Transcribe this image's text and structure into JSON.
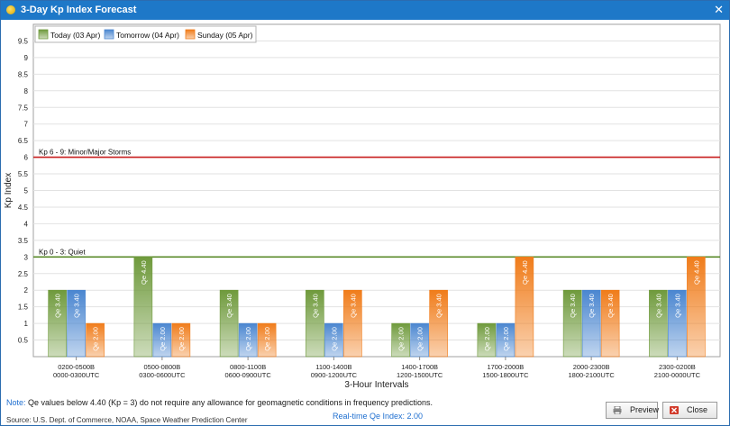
{
  "window": {
    "title": "3-Day Kp Index Forecast",
    "close_glyph": "✕"
  },
  "chart_data": {
    "type": "bar",
    "title": "",
    "xlabel": "3-Hour Intervals",
    "ylabel": "Kp Index",
    "ylim": [
      0,
      10
    ],
    "yticks": [
      "0.5",
      "1",
      "1.5",
      "2",
      "2.5",
      "3",
      "3.5",
      "4",
      "4.5",
      "5",
      "5.5",
      "6",
      "6.5",
      "7",
      "7.5",
      "8",
      "8.5",
      "9",
      "9.5"
    ],
    "categories": [
      [
        "0200-0500B",
        "0000-0300UTC"
      ],
      [
        "0500-0800B",
        "0300-0600UTC"
      ],
      [
        "0800-1100B",
        "0600-0900UTC"
      ],
      [
        "1100-1400B",
        "0900-1200UTC"
      ],
      [
        "1400-1700B",
        "1200-1500UTC"
      ],
      [
        "1700-2000B",
        "1500-1800UTC"
      ],
      [
        "2000-2300B",
        "1800-2100UTC"
      ],
      [
        "2300-0200B",
        "2100-0000UTC"
      ]
    ],
    "series": [
      {
        "name": "Today (03 Apr)",
        "color": "#6f9a3c",
        "values": [
          2,
          3,
          2,
          2,
          1,
          1,
          2,
          2
        ],
        "labels": [
          "Qe 3.40",
          "Qe 4.40",
          "Qe 3.40",
          "Qe 3.40",
          "Qe 2.00",
          "Qe 2.00",
          "Qe 3.40",
          "Qe 3.40"
        ]
      },
      {
        "name": "Tomorrow (04 Apr)",
        "color": "#4a86d0",
        "values": [
          2,
          1,
          1,
          1,
          1,
          1,
          2,
          2
        ],
        "labels": [
          "Qe 3.40",
          "Qe 2.00",
          "Qe 2.00",
          "Qe 2.00",
          "Qe 2.00",
          "Qe 2.00",
          "Qe 3.40",
          "Qe 3.40"
        ]
      },
      {
        "name": "Sunday (05 Apr)",
        "color": "#f07c1a",
        "values": [
          1,
          1,
          1,
          2,
          2,
          3,
          2,
          3
        ],
        "labels": [
          "Qe 2.00",
          "Qe 2.00",
          "Qe 2.00",
          "Qe 3.40",
          "Qe 3.40",
          "Qe 4.40",
          "Qe 3.40",
          "Qe 4.40"
        ]
      }
    ],
    "thresholds": [
      {
        "value": 6,
        "label": "Kp 6 - 9: Minor/Major Storms",
        "color": "#c81e1e"
      },
      {
        "value": 3,
        "label": "Kp 0 - 3: Quiet",
        "color": "#5a8a2a"
      }
    ],
    "legend_position": "top-left",
    "grid": true
  },
  "footer": {
    "note_key": "Note:",
    "note_text": " Qe values below 4.40 (Kp = 3) do not require any allowance for geomagnetic conditions in frequency predictions.",
    "source": "Source: U.S. Dept. of Commerce, NOAA, Space Weather Prediction Center",
    "qe_index": "Real-time Qe Index: 2.00"
  },
  "buttons": {
    "preview": "Preview",
    "close": "Close"
  }
}
